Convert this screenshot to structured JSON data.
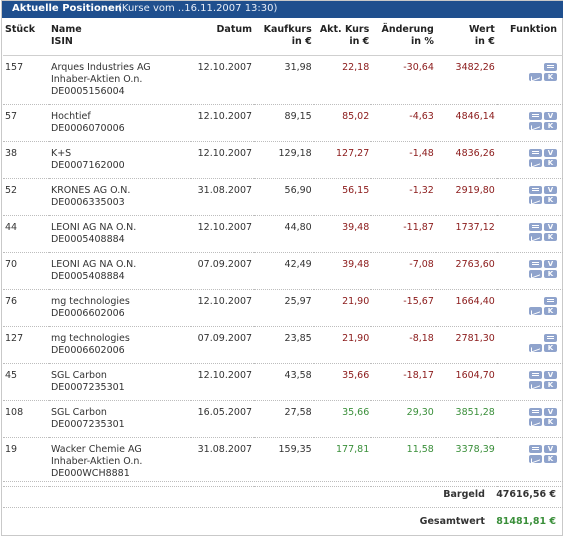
{
  "header": {
    "title": "Aktuelle Positionen",
    "subtitle": "(Kurse vom ..16.11.2007 13:30)"
  },
  "columns": {
    "stueck": "Stück",
    "name": "Name",
    "isin": "ISIN",
    "datum": "Datum",
    "kaufkurs": "Kaufkurs",
    "kaufkurs_unit": "in €",
    "akt_kurs": "Akt. Kurs",
    "akt_kurs_unit": "in €",
    "aenderung": "Änderung",
    "aenderung_unit": "in %",
    "wert": "Wert",
    "wert_unit": "in €",
    "funktion": "Funktion"
  },
  "rows": [
    {
      "stueck": "157",
      "name1": "Arques Industries AG",
      "name2": "Inhaber-Aktien O.n.",
      "isin": "DE0005156004",
      "datum": "12.10.2007",
      "kaufkurs": "31,98",
      "akt_kurs": "22,18",
      "aenderung": "-30,64",
      "wert": "3482,26",
      "trend": "down",
      "icons": [
        "list",
        "chart",
        "k"
      ]
    },
    {
      "stueck": "57",
      "name1": "Hochtief",
      "name2": "",
      "isin": "DE0006070006",
      "datum": "12.10.2007",
      "kaufkurs": "89,15",
      "akt_kurs": "85,02",
      "aenderung": "-4,63",
      "wert": "4846,14",
      "trend": "down",
      "icons": [
        "list",
        "v",
        "chart",
        "k"
      ]
    },
    {
      "stueck": "38",
      "name1": "K+S",
      "name2": "",
      "isin": "DE0007162000",
      "datum": "12.10.2007",
      "kaufkurs": "129,18",
      "akt_kurs": "127,27",
      "aenderung": "-1,48",
      "wert": "4836,26",
      "trend": "down",
      "icons": [
        "list",
        "v",
        "chart",
        "k"
      ]
    },
    {
      "stueck": "52",
      "name1": "KRONES AG O.N.",
      "name2": "",
      "isin": "DE0006335003",
      "datum": "31.08.2007",
      "kaufkurs": "56,90",
      "akt_kurs": "56,15",
      "aenderung": "-1,32",
      "wert": "2919,80",
      "trend": "down",
      "icons": [
        "list",
        "v",
        "chart",
        "k"
      ]
    },
    {
      "stueck": "44",
      "name1": "LEONI AG NA O.N.",
      "name2": "",
      "isin": "DE0005408884",
      "datum": "12.10.2007",
      "kaufkurs": "44,80",
      "akt_kurs": "39,48",
      "aenderung": "-11,87",
      "wert": "1737,12",
      "trend": "down",
      "icons": [
        "list",
        "v",
        "chart",
        "k"
      ]
    },
    {
      "stueck": "70",
      "name1": "LEONI AG NA O.N.",
      "name2": "",
      "isin": "DE0005408884",
      "datum": "07.09.2007",
      "kaufkurs": "42,49",
      "akt_kurs": "39,48",
      "aenderung": "-7,08",
      "wert": "2763,60",
      "trend": "down",
      "icons": [
        "list",
        "v",
        "chart",
        "k"
      ]
    },
    {
      "stueck": "76",
      "name1": "mg technologies",
      "name2": "",
      "isin": "DE0006602006",
      "datum": "12.10.2007",
      "kaufkurs": "25,97",
      "akt_kurs": "21,90",
      "aenderung": "-15,67",
      "wert": "1664,40",
      "trend": "down",
      "icons": [
        "list",
        "chart",
        "k"
      ]
    },
    {
      "stueck": "127",
      "name1": "mg technologies",
      "name2": "",
      "isin": "DE0006602006",
      "datum": "07.09.2007",
      "kaufkurs": "23,85",
      "akt_kurs": "21,90",
      "aenderung": "-8,18",
      "wert": "2781,30",
      "trend": "down",
      "icons": [
        "list",
        "chart",
        "k"
      ]
    },
    {
      "stueck": "45",
      "name1": "SGL Carbon",
      "name2": "",
      "isin": "DE0007235301",
      "datum": "12.10.2007",
      "kaufkurs": "43,58",
      "akt_kurs": "35,66",
      "aenderung": "-18,17",
      "wert": "1604,70",
      "trend": "down",
      "icons": [
        "list",
        "v",
        "chart",
        "k"
      ]
    },
    {
      "stueck": "108",
      "name1": "SGL Carbon",
      "name2": "",
      "isin": "DE0007235301",
      "datum": "16.05.2007",
      "kaufkurs": "27,58",
      "akt_kurs": "35,66",
      "aenderung": "29,30",
      "wert": "3851,28",
      "trend": "up",
      "icons": [
        "list",
        "v",
        "chart",
        "k"
      ]
    },
    {
      "stueck": "19",
      "name1": "Wacker Chemie AG",
      "name2": "Inhaber-Aktien O.n.",
      "isin": "DE000WCH8881",
      "datum": "31.08.2007",
      "kaufkurs": "159,35",
      "akt_kurs": "177,81",
      "aenderung": "11,58",
      "wert": "3378,39",
      "trend": "up",
      "icons": [
        "list",
        "v",
        "chart",
        "k"
      ]
    }
  ],
  "summary": {
    "bargeld_label": "Bargeld",
    "bargeld_value": "47616,56 €",
    "gesamtwert_label": "Gesamtwert",
    "gesamtwert_value": "81481,81 €"
  },
  "colors": {
    "header_bg": "#1f4f8e",
    "down": "#8b1a1a",
    "up": "#3a8f3a",
    "icon": "#8fa3cc"
  }
}
